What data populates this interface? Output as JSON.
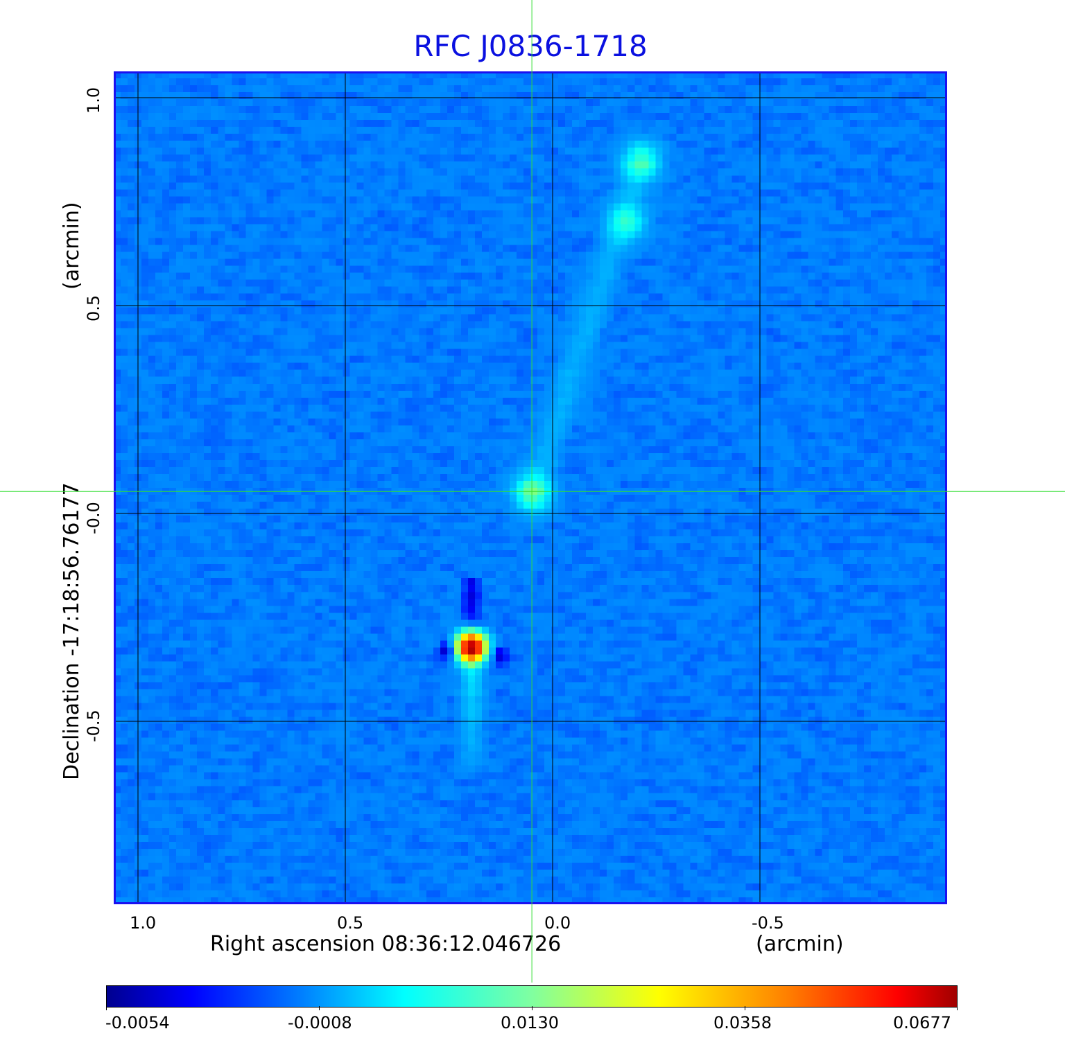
{
  "chart_data": {
    "type": "heatmap",
    "title": "RFC J0836-1718",
    "xlabel": "Right ascension  08:36:12.046726",
    "xunit": "(arcmin)",
    "ylabel": "Declination  -17:18:56.76177",
    "yunit": "(arcmin)",
    "xlim": [
      1.058,
      -0.95
    ],
    "ylim": [
      -0.94,
      1.063
    ],
    "xticks": [
      {
        "value": 1.0,
        "label": "1.0"
      },
      {
        "value": 0.5,
        "label": "0.5"
      },
      {
        "value": 0.0,
        "label": "0.0"
      },
      {
        "value": -0.5,
        "label": "-0.5"
      }
    ],
    "yticks": [
      {
        "value": 1.0,
        "label": "1.0"
      },
      {
        "value": 0.5,
        "label": "0.5"
      },
      {
        "value": 0.0,
        "label": "-0.0"
      },
      {
        "value": -0.5,
        "label": "-0.5"
      }
    ],
    "grid": true,
    "colormap": "jet",
    "colorbar": {
      "placement": "bottom",
      "ticks": [
        "-0.0054",
        "-0.0008",
        "0.0130",
        "0.0358",
        "0.0677"
      ],
      "values": [
        -0.0054,
        -0.0008,
        0.013,
        0.0358,
        0.0677
      ]
    },
    "crosshair": {
      "x": 0.05,
      "y": 0.053,
      "color": "#33dd33"
    },
    "sources": [
      {
        "x": 0.196,
        "y": -0.32,
        "peak": 0.0677
      },
      {
        "x": 0.048,
        "y": 0.048,
        "peak": 0.012
      },
      {
        "x": -0.214,
        "y": 0.848,
        "peak": 0.01
      },
      {
        "x": -0.18,
        "y": 0.7,
        "peak": 0.008
      },
      {
        "x": 0.25,
        "y": -0.33,
        "peak": -0.0054
      },
      {
        "x": 0.13,
        "y": -0.34,
        "peak": -0.004
      }
    ]
  }
}
